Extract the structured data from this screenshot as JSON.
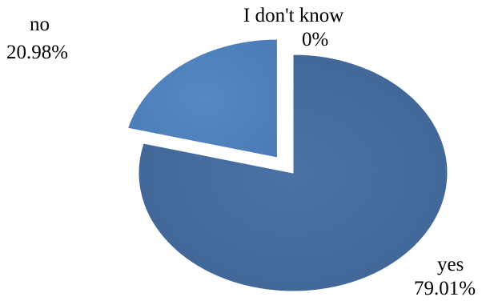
{
  "chart_data": {
    "type": "pie",
    "slices": [
      {
        "label": "yes",
        "value_text": "79.01%",
        "value": 79.01,
        "color": "#44699a"
      },
      {
        "label": "no",
        "value_text": "20.98%",
        "value": 20.98,
        "color": "#4f81bd"
      },
      {
        "label": "I don't know",
        "value_text": "0%",
        "value": 0,
        "color": "#c0504d"
      }
    ]
  }
}
